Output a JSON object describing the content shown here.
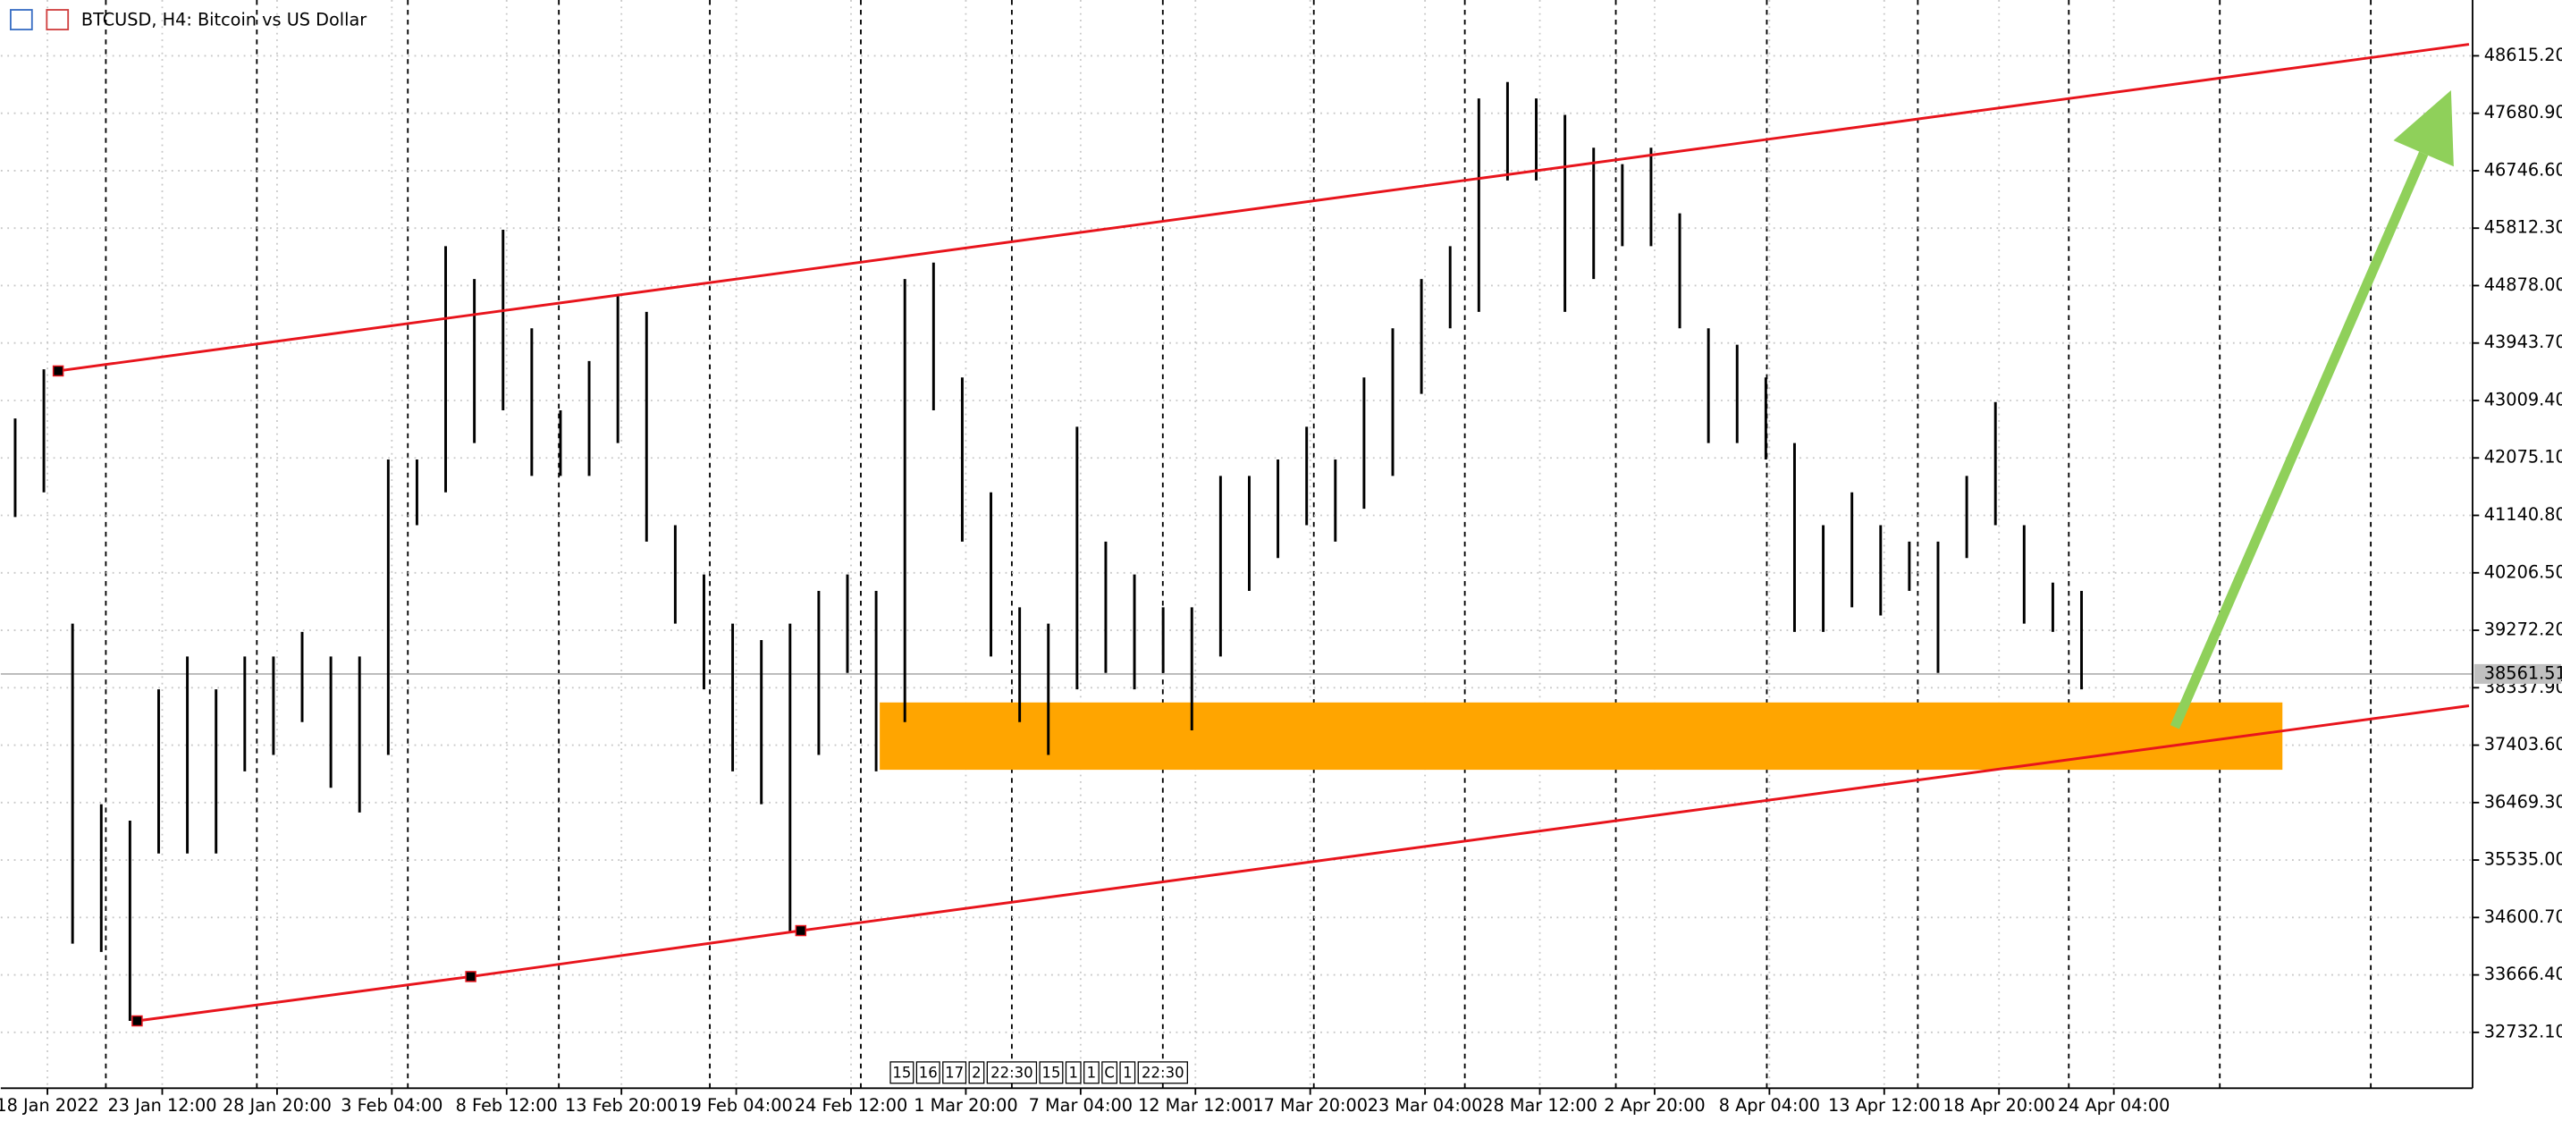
{
  "chart_data": {
    "type": "hilo",
    "title": "BTCUSD, H4:  Bitcoin vs US Dollar",
    "color": "#000000",
    "x": [
      3,
      11,
      19,
      27,
      35,
      43,
      51,
      59,
      67,
      75,
      83,
      91,
      99,
      107,
      115,
      123,
      131,
      139,
      147,
      155,
      163,
      171,
      179,
      187,
      195,
      203,
      211,
      219,
      227,
      235,
      243,
      251,
      259,
      267,
      275,
      283,
      291,
      299,
      307,
      315,
      323,
      331,
      339,
      347,
      355,
      363,
      371,
      379,
      387,
      395,
      403,
      411,
      419,
      427,
      435,
      443,
      451,
      459,
      467,
      475,
      483,
      491,
      499,
      507,
      515,
      523,
      531,
      539,
      547,
      555,
      563,
      571,
      579
    ],
    "high": [
      42716,
      43517,
      39379,
      36443,
      36176,
      38312,
      38845,
      38312,
      38845,
      38845,
      39246,
      38845,
      38845,
      42049,
      42049,
      45519,
      44985,
      45786,
      44184,
      42849,
      43650,
      44718,
      44451,
      40981,
      40180,
      39379,
      39112,
      39379,
      39913,
      40180,
      39913,
      44985,
      45252,
      43383,
      41515,
      39646,
      39379,
      42583,
      40714,
      40180,
      39646,
      39646,
      41782,
      41782,
      42049,
      42583,
      42049,
      43383,
      44184,
      44985,
      45519,
      47921,
      48188,
      47921,
      47654,
      47120,
      46853,
      47120,
      46053,
      44184,
      43917,
      43383,
      42316,
      40981,
      41515,
      40981,
      40714,
      40714,
      41782,
      42983,
      40981,
      40047,
      39913
    ],
    "low": [
      41114,
      41515,
      34174,
      34040,
      32919,
      35642,
      35642,
      35642,
      36977,
      37244,
      37778,
      36710,
      36309,
      37244,
      40981,
      41515,
      42316,
      42849,
      41782,
      41782,
      41782,
      42316,
      40714,
      39379,
      38312,
      36977,
      36443,
      34361,
      37244,
      38578,
      36977,
      37778,
      42849,
      40714,
      38845,
      37778,
      37244,
      38312,
      38578,
      38312,
      38578,
      37644,
      38845,
      39913,
      40447,
      40981,
      40714,
      41248,
      41782,
      43116,
      44184,
      44451,
      46587,
      46587,
      44451,
      44985,
      45519,
      45519,
      44184,
      42316,
      42316,
      42049,
      39246,
      39246,
      39646,
      39513,
      39913,
      38578,
      40447,
      40981,
      39379,
      39246,
      38312
    ],
    "xlim": [
      -1,
      688
    ],
    "xticks": [
      {
        "value": 12,
        "label": "18 Jan 2022"
      },
      {
        "value": 44,
        "label": "23 Jan 12:00"
      },
      {
        "value": 76,
        "label": "28 Jan 20:00"
      },
      {
        "value": 108,
        "label": "3 Feb 04:00"
      },
      {
        "value": 140,
        "label": "8 Feb 12:00"
      },
      {
        "value": 172,
        "label": "13 Feb 20:00"
      },
      {
        "value": 204,
        "label": "19 Feb 04:00"
      },
      {
        "value": 236,
        "label": "24 Feb 12:00"
      },
      {
        "value": 268,
        "label": "1 Mar 20:00"
      },
      {
        "value": 300,
        "label": "7 Mar 04:00"
      },
      {
        "value": 332,
        "label": "12 Mar 12:00"
      },
      {
        "value": 364,
        "label": "17 Mar 20:00"
      },
      {
        "value": 396,
        "label": "23 Mar 04:00"
      },
      {
        "value": 428,
        "label": "28 Mar 12:00"
      },
      {
        "value": 460,
        "label": "2 Apr 20:00"
      },
      {
        "value": 492,
        "label": "8 Apr 04:00"
      },
      {
        "value": 524,
        "label": "13 Apr 12:00"
      },
      {
        "value": 556,
        "label": "18 Apr 20:00"
      },
      {
        "value": 588,
        "label": "24 Apr 04:00"
      }
    ],
    "ylim": [
      31824.5,
      49522.8
    ],
    "yticks": [
      {
        "value": 48615.2,
        "label": "48615.20"
      },
      {
        "value": 47680.9,
        "label": "47680.90"
      },
      {
        "value": 46746.6,
        "label": "46746.60"
      },
      {
        "value": 45812.3,
        "label": "45812.30"
      },
      {
        "value": 44878,
        "label": "44878.00"
      },
      {
        "value": 43943.7,
        "label": "43943.70"
      },
      {
        "value": 43009.4,
        "label": "43009.40"
      },
      {
        "value": 42075.1,
        "label": "42075.10"
      },
      {
        "value": 41140.8,
        "label": "41140.80"
      },
      {
        "value": 40206.5,
        "label": "40206.50"
      },
      {
        "value": 39272.2,
        "label": "39272.20"
      },
      {
        "value": 38337.9,
        "label": "38337.90"
      },
      {
        "value": 37403.6,
        "label": "37403.60"
      },
      {
        "value": 36469.3,
        "label": "36469.30"
      },
      {
        "value": 35535,
        "label": "35535.00"
      },
      {
        "value": 34600.7,
        "label": "34600.70"
      },
      {
        "value": 33666.4,
        "label": "33666.40"
      },
      {
        "value": 32732.1,
        "label": "32732.10"
      }
    ],
    "grid": true,
    "last_price": {
      "value": 38561.51,
      "label": "38561.51"
    },
    "trendlines": [
      {
        "color": "#e8141c",
        "x": [
          15,
          687
        ],
        "y": [
          43490,
          48802
        ]
      },
      {
        "color": "#e8141c",
        "x": [
          37,
          130,
          222,
          687
        ],
        "y": [
          32919,
          33640,
          34387,
          38044
        ]
      }
    ],
    "zone": {
      "color": "#ffa500",
      "x": [
        244,
        635
      ],
      "y": [
        37003,
        38098
      ]
    },
    "arrow": {
      "color": "#8fd05a",
      "x": [
        605,
        682
      ],
      "y": [
        37697,
        48055
      ]
    },
    "scroll_markers": [
      "15",
      "16",
      "17",
      "2",
      "22:30",
      "15",
      "1",
      "1",
      "C",
      "1",
      "22:30"
    ]
  }
}
